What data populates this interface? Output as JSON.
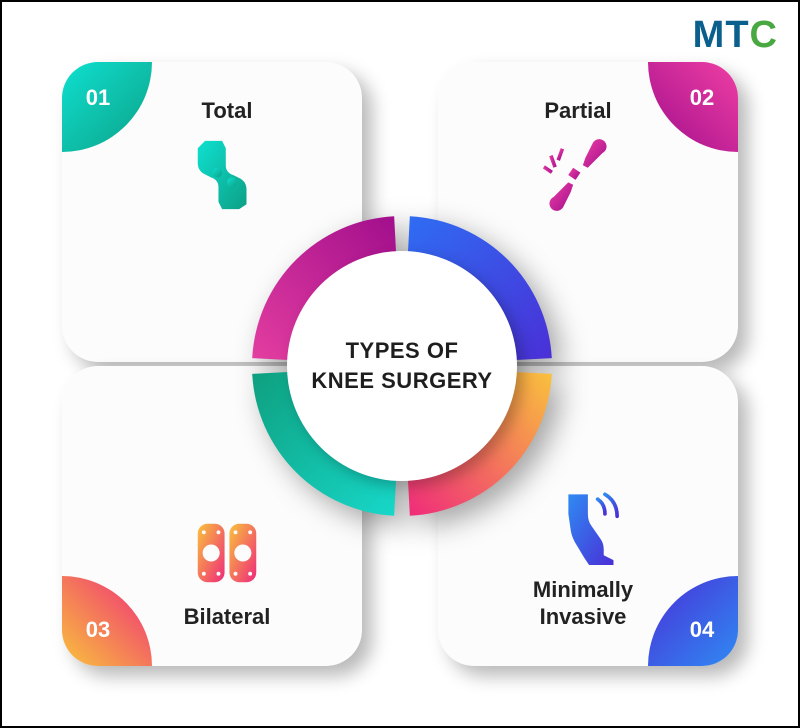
{
  "logo": {
    "m": "M",
    "t": "T",
    "c": "C"
  },
  "center": {
    "title": "TYPES OF\nKNEE SURGERY",
    "fontsize": 22,
    "color": "#1e1e1e"
  },
  "background_color": "#ffffff",
  "border_color": "#000000",
  "card_background": "#fcfcfc",
  "card_radius": 36,
  "card_shadow": "10px 10px 18px rgba(0,0,0,0.28)",
  "ring": {
    "outer_r": 150,
    "inner_r": 90,
    "gap_deg": 3,
    "segments": [
      {
        "pos": "tl",
        "grad": {
          "from": "#17d8c9",
          "to": "#0e9f7f",
          "angle": 135
        }
      },
      {
        "pos": "tr",
        "grad": {
          "from": "#e43ea0",
          "to": "#a10e8c",
          "angle": 45
        }
      },
      {
        "pos": "br",
        "grad": {
          "from": "#2f6df3",
          "to": "#4a2fd6",
          "angle": -45
        }
      },
      {
        "pos": "bl",
        "grad": {
          "from": "#f9c23c",
          "to": "#ef2a7b",
          "angle": -135
        }
      }
    ]
  },
  "cards": {
    "tl": {
      "num": "01",
      "title": "Total",
      "corner_grad": {
        "from": "#0fe0d0",
        "to": "#0ca085"
      },
      "icon_grad": {
        "from": "#0fe0d0",
        "to": "#0ca085"
      },
      "icon": "knee-joint"
    },
    "tr": {
      "num": "02",
      "title": "Partial",
      "corner_grad": {
        "from": "#ef3fa4",
        "to": "#a10e8c"
      },
      "icon_grad": {
        "from": "#ef3fa4",
        "to": "#a10e8c"
      },
      "icon": "broken-bone"
    },
    "bl": {
      "num": "03",
      "title": "Bilateral",
      "corner_grad": {
        "from": "#f9c23c",
        "to": "#ef2a7b"
      },
      "icon_grad": {
        "from": "#f9c23c",
        "to": "#ef2a7b"
      },
      "icon": "knee-pads"
    },
    "br": {
      "num": "04",
      "title": "Minimally\nInvasive",
      "corner_grad": {
        "from": "#2f8af3",
        "to": "#4a2fd6"
      },
      "icon_grad": {
        "from": "#2f8af3",
        "to": "#4a2fd6"
      },
      "icon": "leg-scan"
    }
  }
}
